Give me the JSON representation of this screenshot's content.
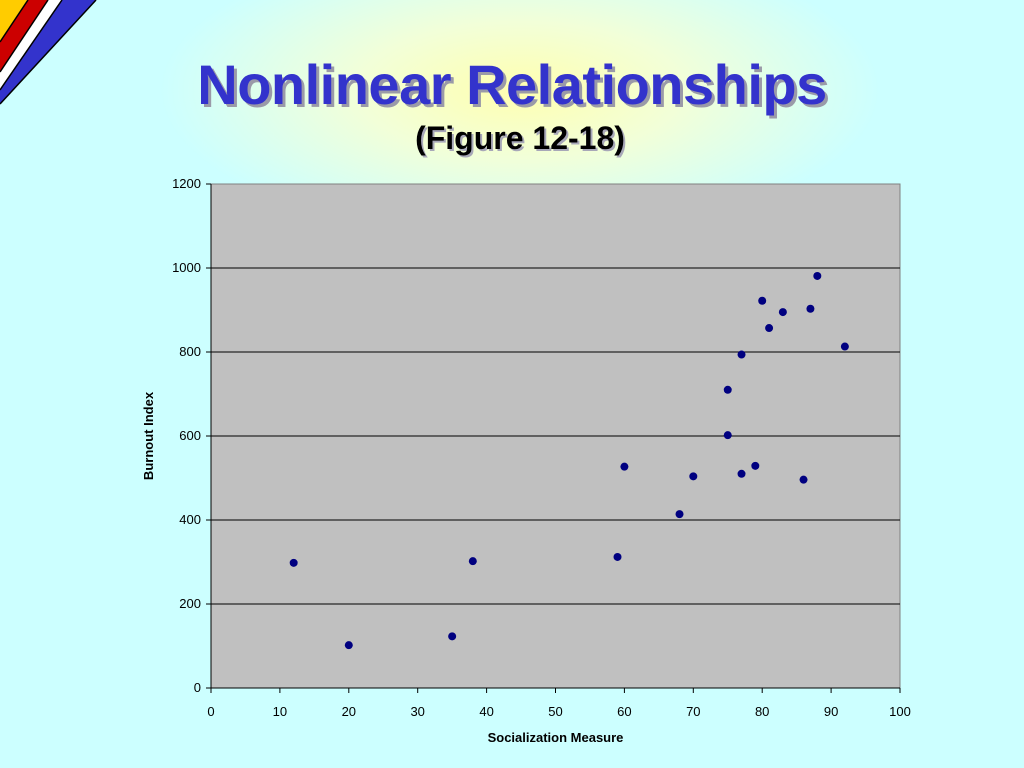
{
  "slide": {
    "title": "Nonlinear Relationships",
    "subtitle": "(Figure 12-18)"
  },
  "colors": {
    "background": "#ccffff",
    "title": "#3333cc",
    "plot_area": "#c0c0c0",
    "points": "#000080",
    "corner_stripes": [
      "#ffcc00",
      "#cc0000",
      "#3333cc"
    ]
  },
  "chart_data": {
    "type": "scatter",
    "xlabel": "Socialization Measure",
    "ylabel": "Burnout Index",
    "xlim": [
      0,
      100
    ],
    "ylim": [
      0,
      1200
    ],
    "xticks": [
      0,
      10,
      20,
      30,
      40,
      50,
      60,
      70,
      80,
      90,
      100
    ],
    "yticks": [
      0,
      200,
      400,
      600,
      800,
      1000,
      1200
    ],
    "grid": "horizontal",
    "legend": "none",
    "points": [
      {
        "x": 12,
        "y": 298
      },
      {
        "x": 20,
        "y": 102
      },
      {
        "x": 35,
        "y": 123
      },
      {
        "x": 38,
        "y": 302
      },
      {
        "x": 59,
        "y": 312
      },
      {
        "x": 60,
        "y": 527
      },
      {
        "x": 68,
        "y": 414
      },
      {
        "x": 70,
        "y": 504
      },
      {
        "x": 75,
        "y": 710
      },
      {
        "x": 75,
        "y": 602
      },
      {
        "x": 77,
        "y": 794
      },
      {
        "x": 77,
        "y": 510
      },
      {
        "x": 79,
        "y": 529
      },
      {
        "x": 80,
        "y": 922
      },
      {
        "x": 81,
        "y": 857
      },
      {
        "x": 83,
        "y": 895
      },
      {
        "x": 86,
        "y": 496
      },
      {
        "x": 87,
        "y": 903
      },
      {
        "x": 88,
        "y": 981
      },
      {
        "x": 92,
        "y": 813
      }
    ]
  }
}
